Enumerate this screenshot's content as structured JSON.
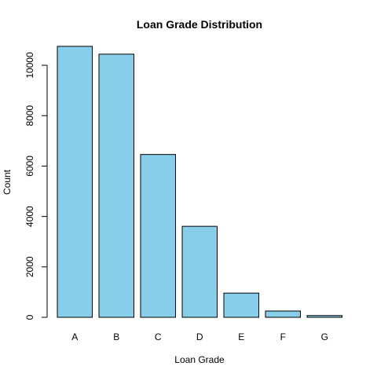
{
  "chart_data": {
    "type": "bar",
    "title": "Loan Grade Distribution",
    "xlabel": "Loan Grade",
    "ylabel": "Count",
    "categories": [
      "A",
      "B",
      "C",
      "D",
      "E",
      "F",
      "G"
    ],
    "values": [
      10750,
      10440,
      6460,
      3610,
      960,
      250,
      70
    ],
    "ylim": [
      0,
      10750
    ],
    "yticks": [
      0,
      2000,
      4000,
      6000,
      8000,
      10000
    ],
    "bar_color": "#87CEEB",
    "border_color": "#000000",
    "grid": false
  }
}
